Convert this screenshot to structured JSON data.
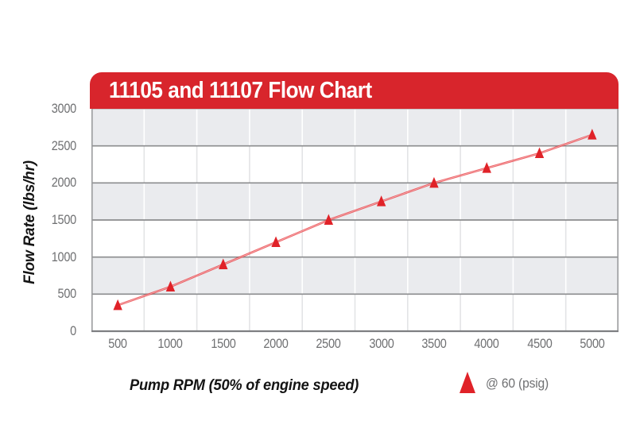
{
  "chart": {
    "title": "11105 and 11107 Flow Chart",
    "x_axis_title": "Pump RPM (50% of engine speed)",
    "y_axis_title": "Flow Rate (lbs/hr)",
    "legend_label": "@ 60 (psig)"
  },
  "chart_data": {
    "type": "line",
    "title": "11105 and 11107 Flow Chart",
    "xlabel": "Pump RPM (50% of engine speed)",
    "ylabel": "Flow Rate (lbs/hr)",
    "x": [
      500,
      1000,
      1500,
      2000,
      2500,
      3000,
      3500,
      4000,
      4500,
      5000
    ],
    "series": [
      {
        "name": "@ 60 (psig)",
        "marker": "triangle-up",
        "values": [
          350,
          600,
          900,
          1200,
          1500,
          1750,
          2000,
          2200,
          2400,
          2650
        ]
      }
    ],
    "ylim": [
      0,
      3000
    ],
    "y_ticks": [
      0,
      500,
      1000,
      1500,
      2000,
      2500,
      3000
    ],
    "x_ticks": [
      500,
      1000,
      1500,
      2000,
      2500,
      3000,
      3500,
      4000,
      4500,
      5000
    ],
    "grid": "horizontal gridlines every 500 units; vertical column separators between RPM columns; alternating gray/white horizontal bands",
    "legend_position": "bottom-right"
  },
  "colors": {
    "banner_red": "#d8252c",
    "marker_red": "#e02228",
    "line_red": "#e8393f",
    "band_gray": "#eaebee",
    "gridline_gray": "#8b8c8e",
    "border_gray": "#9b9c9e",
    "bottom_border_gray": "#7e7f82",
    "top_border_gray": "#c7c8ca",
    "column_line_on_gray": "#ffffff",
    "column_line_on_white": "#e3e4e6",
    "tick_text_gray": "#6f7072",
    "axis_title_black": "#141414",
    "title_white": "#ffffff"
  }
}
